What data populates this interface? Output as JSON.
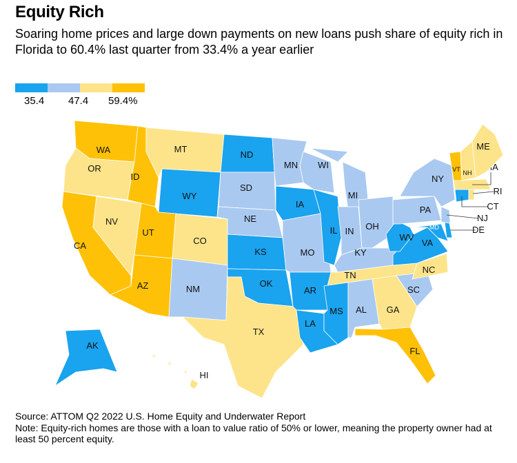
{
  "title": "Equity Rich",
  "subtitle": "Soaring home prices and large down payments on new loans push share of equity rich in Florida to 60.4% last quarter from 33.4% a year earlier",
  "legend": {
    "colors": [
      "#1aa3ee",
      "#a9c9f0",
      "#fde48a",
      "#ffc107"
    ],
    "ticks": [
      "35.4",
      "47.4",
      "59.4%"
    ]
  },
  "states": [
    {
      "code": "WA",
      "bin": 3
    },
    {
      "code": "OR",
      "bin": 2
    },
    {
      "code": "CA",
      "bin": 3
    },
    {
      "code": "NV",
      "bin": 2
    },
    {
      "code": "ID",
      "bin": 3
    },
    {
      "code": "MT",
      "bin": 2
    },
    {
      "code": "WY",
      "bin": 0
    },
    {
      "code": "UT",
      "bin": 3
    },
    {
      "code": "AZ",
      "bin": 3
    },
    {
      "code": "CO",
      "bin": 2
    },
    {
      "code": "NM",
      "bin": 1
    },
    {
      "code": "ND",
      "bin": 0
    },
    {
      "code": "SD",
      "bin": 1
    },
    {
      "code": "NE",
      "bin": 1
    },
    {
      "code": "KS",
      "bin": 0
    },
    {
      "code": "OK",
      "bin": 0
    },
    {
      "code": "TX",
      "bin": 2
    },
    {
      "code": "MN",
      "bin": 1
    },
    {
      "code": "IA",
      "bin": 0
    },
    {
      "code": "MO",
      "bin": 1
    },
    {
      "code": "AR",
      "bin": 0
    },
    {
      "code": "LA",
      "bin": 0
    },
    {
      "code": "WI",
      "bin": 1
    },
    {
      "code": "IL",
      "bin": 0
    },
    {
      "code": "MI",
      "bin": 1
    },
    {
      "code": "IN",
      "bin": 1
    },
    {
      "code": "OH",
      "bin": 1
    },
    {
      "code": "KY",
      "bin": 1
    },
    {
      "code": "TN",
      "bin": 2
    },
    {
      "code": "MS",
      "bin": 0
    },
    {
      "code": "AL",
      "bin": 1
    },
    {
      "code": "GA",
      "bin": 2
    },
    {
      "code": "FL",
      "bin": 3
    },
    {
      "code": "SC",
      "bin": 1
    },
    {
      "code": "NC",
      "bin": 2
    },
    {
      "code": "VA",
      "bin": 0
    },
    {
      "code": "WV",
      "bin": 0
    },
    {
      "code": "PA",
      "bin": 1
    },
    {
      "code": "NY",
      "bin": 1
    },
    {
      "code": "MD",
      "bin": 0
    },
    {
      "code": "DE",
      "bin": 0
    },
    {
      "code": "NJ",
      "bin": 1
    },
    {
      "code": "CT",
      "bin": 0
    },
    {
      "code": "RI",
      "bin": 2
    },
    {
      "code": "MA",
      "bin": 2
    },
    {
      "code": "VT",
      "bin": 3
    },
    {
      "code": "NH",
      "bin": 2
    },
    {
      "code": "ME",
      "bin": 2
    },
    {
      "code": "AK",
      "bin": 0
    },
    {
      "code": "HI",
      "bin": 2
    }
  ],
  "footer": {
    "source": "Source: ATTOM Q2 2022 U.S. Home Equity and Underwater Report",
    "note": "Note: Equity-rich homes are those with a loan to value ratio of 50% or lower, meaning the property owner had at least 50 percent equity."
  }
}
